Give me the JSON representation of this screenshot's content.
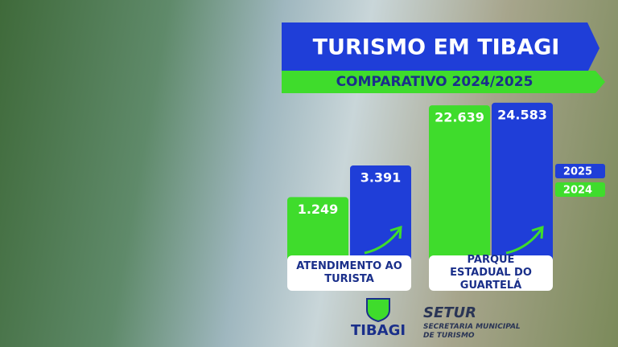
{
  "chart_data": {
    "type": "bar",
    "title": "TURISMO EM TIBAGI",
    "subtitle": "COMPARATIVO 2024/2025",
    "categories": [
      "ATENDIMENTO AO TURISTA",
      "PARQUE ESTADUAL DO GUARTELÁ"
    ],
    "series": [
      {
        "name": "2024",
        "color": "#3fdc2c",
        "values": [
          1249,
          22639
        ],
        "value_labels": [
          "1.249",
          "22.639"
        ]
      },
      {
        "name": "2025",
        "color": "#1f3ed8",
        "values": [
          3391,
          24583
        ],
        "value_labels": [
          "3.391",
          "24.583"
        ]
      }
    ],
    "ylim": [
      100,
      30000
    ],
    "log_scale": true,
    "legend": "right"
  },
  "footer": {
    "logo": "TIBAGI",
    "org": "SETUR",
    "org_name": "SECRETARIA MUNICIPAL DE TURISMO"
  }
}
